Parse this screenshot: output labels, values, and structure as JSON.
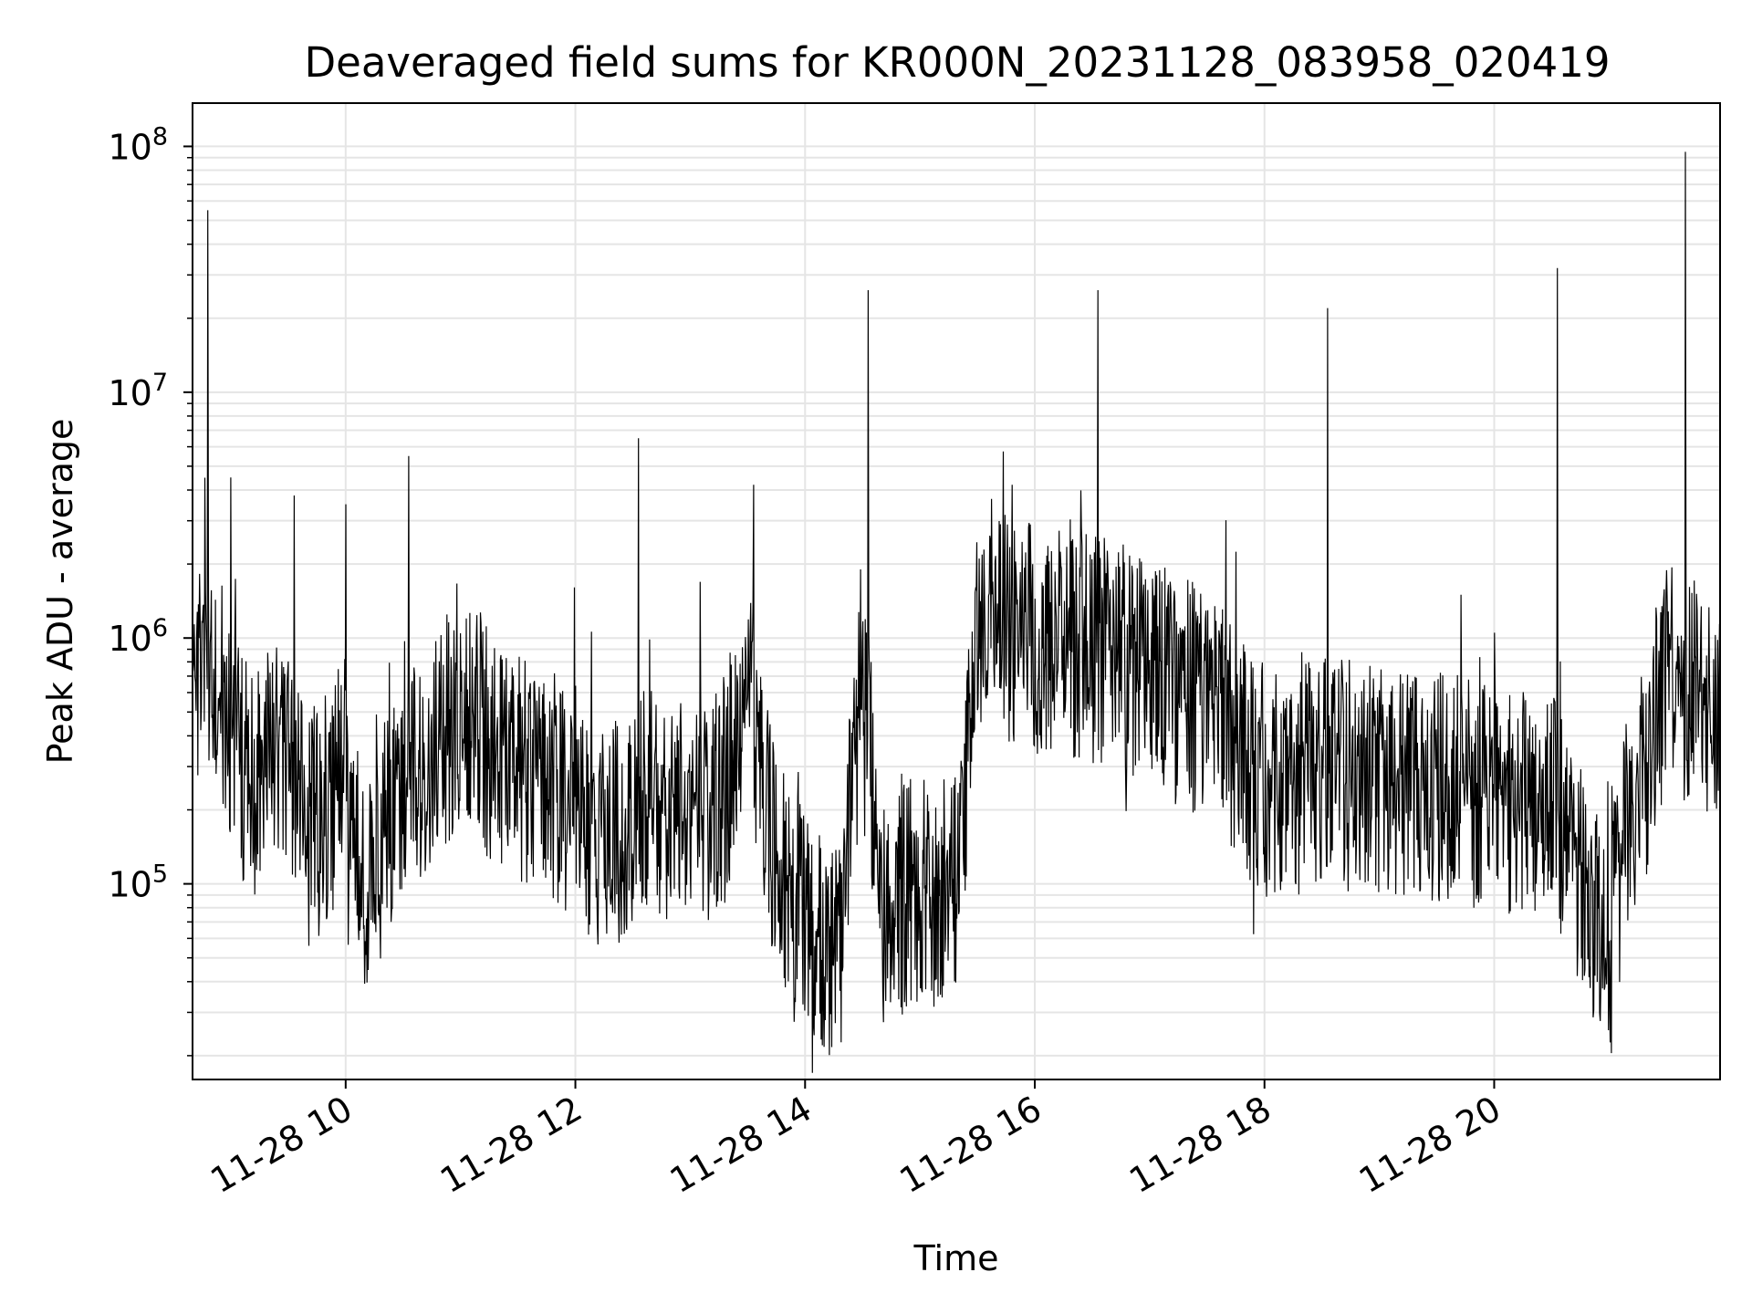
{
  "chart_data": {
    "type": "line",
    "title": "Deaveraged field sums for KR000N_20231128_083958_020419",
    "xlabel": "Time",
    "ylabel": "Peak ADU - average",
    "yscale": "log",
    "ylim": [
      16000,
      150000000
    ],
    "xlim": [
      "2023-11-28 08:40",
      "2023-11-28 21:58"
    ],
    "grid": true,
    "x_ticks": [
      "11-28 10",
      "11-28 12",
      "11-28 14",
      "11-28 16",
      "11-28 18",
      "11-28 20"
    ],
    "y_ticks": [
      {
        "base": "10",
        "exp": "5"
      },
      {
        "base": "10",
        "exp": "6"
      },
      {
        "base": "10",
        "exp": "7"
      },
      {
        "base": "10",
        "exp": "8"
      }
    ],
    "series": [
      {
        "color": "#000000",
        "x": [
          "2023-11-28 08:40",
          "2023-11-28 08:50",
          "2023-11-28 09:00",
          "2023-11-28 09:10",
          "2023-11-28 09:20",
          "2023-11-28 09:30",
          "2023-11-28 09:40",
          "2023-11-28 09:50",
          "2023-11-28 10:00",
          "2023-11-28 10:10",
          "2023-11-28 10:20",
          "2023-11-28 10:30",
          "2023-11-28 10:40",
          "2023-11-28 10:50",
          "2023-11-28 11:00",
          "2023-11-28 11:10",
          "2023-11-28 11:20",
          "2023-11-28 11:30",
          "2023-11-28 11:40",
          "2023-11-28 11:50",
          "2023-11-28 12:00",
          "2023-11-28 12:10",
          "2023-11-28 12:20",
          "2023-11-28 12:30",
          "2023-11-28 12:40",
          "2023-11-28 12:50",
          "2023-11-28 13:00",
          "2023-11-28 13:10",
          "2023-11-28 13:20",
          "2023-11-28 13:30",
          "2023-11-28 13:40",
          "2023-11-28 13:50",
          "2023-11-28 14:00",
          "2023-11-28 14:10",
          "2023-11-28 14:20",
          "2023-11-28 14:30",
          "2023-11-28 14:40",
          "2023-11-28 14:50",
          "2023-11-28 15:00",
          "2023-11-28 15:10",
          "2023-11-28 15:20",
          "2023-11-28 15:30",
          "2023-11-28 15:40",
          "2023-11-28 15:50",
          "2023-11-28 16:00",
          "2023-11-28 16:10",
          "2023-11-28 16:20",
          "2023-11-28 16:30",
          "2023-11-28 16:40",
          "2023-11-28 16:50",
          "2023-11-28 17:00",
          "2023-11-28 17:10",
          "2023-11-28 17:20",
          "2023-11-28 17:30",
          "2023-11-28 17:40",
          "2023-11-28 17:50",
          "2023-11-28 18:00",
          "2023-11-28 18:10",
          "2023-11-28 18:20",
          "2023-11-28 18:30",
          "2023-11-28 18:40",
          "2023-11-28 18:50",
          "2023-11-28 19:00",
          "2023-11-28 19:10",
          "2023-11-28 19:20",
          "2023-11-28 19:30",
          "2023-11-28 19:40",
          "2023-11-28 19:50",
          "2023-11-28 20:00",
          "2023-11-28 20:10",
          "2023-11-28 20:20",
          "2023-11-28 20:30",
          "2023-11-28 20:40",
          "2023-11-28 20:50",
          "2023-11-28 21:00",
          "2023-11-28 21:10",
          "2023-11-28 21:20",
          "2023-11-28 21:30",
          "2023-11-28 21:40",
          "2023-11-28 21:50",
          "2023-11-28 21:58"
        ],
        "y": [
          700000,
          800000,
          400000,
          250000,
          300000,
          350000,
          150000,
          200000,
          300000,
          110000,
          150000,
          250000,
          300000,
          400000,
          500000,
          450000,
          300000,
          280000,
          300000,
          250000,
          200000,
          150000,
          150000,
          200000,
          220000,
          200000,
          180000,
          200000,
          250000,
          700000,
          200000,
          90000,
          70000,
          55000,
          60000,
          900000,
          80000,
          85000,
          100000,
          90000,
          110000,
          1200000,
          1300000,
          1000000,
          1000000,
          950000,
          900000,
          900000,
          900000,
          800000,
          700000,
          650000,
          600000,
          500000,
          450000,
          350000,
          250000,
          260000,
          270000,
          280000,
          280000,
          270000,
          260000,
          250000,
          250000,
          250000,
          240000,
          230000,
          220000,
          220000,
          200000,
          200000,
          150000,
          80000,
          50000,
          200000,
          300000,
          800000,
          600000,
          500000,
          500000
        ]
      }
    ],
    "spikes": [
      {
        "x": "2023-11-28 08:48",
        "y": 55000000
      },
      {
        "x": "2023-11-28 09:00",
        "y": 4500000
      },
      {
        "x": "2023-11-28 09:33",
        "y": 3800000
      },
      {
        "x": "2023-11-28 10:00",
        "y": 3500000
      },
      {
        "x": "2023-11-28 10:33",
        "y": 5500000
      },
      {
        "x": "2023-11-28 12:33",
        "y": 6500000
      },
      {
        "x": "2023-11-28 13:33",
        "y": 4200000
      },
      {
        "x": "2023-11-28 14:33",
        "y": 26000000
      },
      {
        "x": "2023-11-28 16:33",
        "y": 26000000
      },
      {
        "x": "2023-11-28 18:33",
        "y": 22000000
      },
      {
        "x": "2023-11-28 20:33",
        "y": 32000000
      },
      {
        "x": "2023-11-28 21:40",
        "y": 95000000
      }
    ]
  }
}
